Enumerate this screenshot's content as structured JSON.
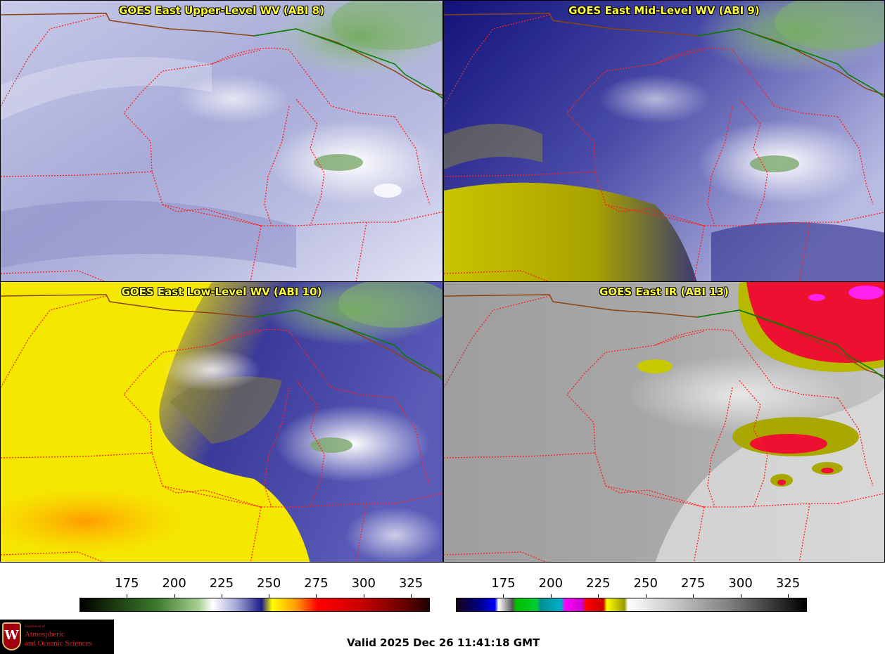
{
  "panels": [
    {
      "title": "GOES East Upper-Level WV (ABI 8)"
    },
    {
      "title": "GOES East Mid-Level WV (ABI 9)"
    },
    {
      "title": "GOES East Low-Level WV (ABI 10)"
    },
    {
      "title": "GOES East IR (ABI 13)"
    }
  ],
  "colorbars": [
    {
      "ticks": [
        "175",
        "200",
        "225",
        "250",
        "275",
        "300",
        "325"
      ]
    },
    {
      "ticks": [
        "175",
        "200",
        "225",
        "250",
        "275",
        "300",
        "325"
      ]
    }
  ],
  "valid_time": "Valid 2025 Dec 26 11:41:18 GMT",
  "logo": {
    "line1": "Department of",
    "line2": "Atmospheric",
    "line3": "and Oceanic Sciences",
    "mark": "W"
  },
  "colors": {
    "title_text": "#ffff33",
    "state_borders": "#ff2020",
    "coastline": "#8b4513",
    "country_border": "#008000"
  }
}
